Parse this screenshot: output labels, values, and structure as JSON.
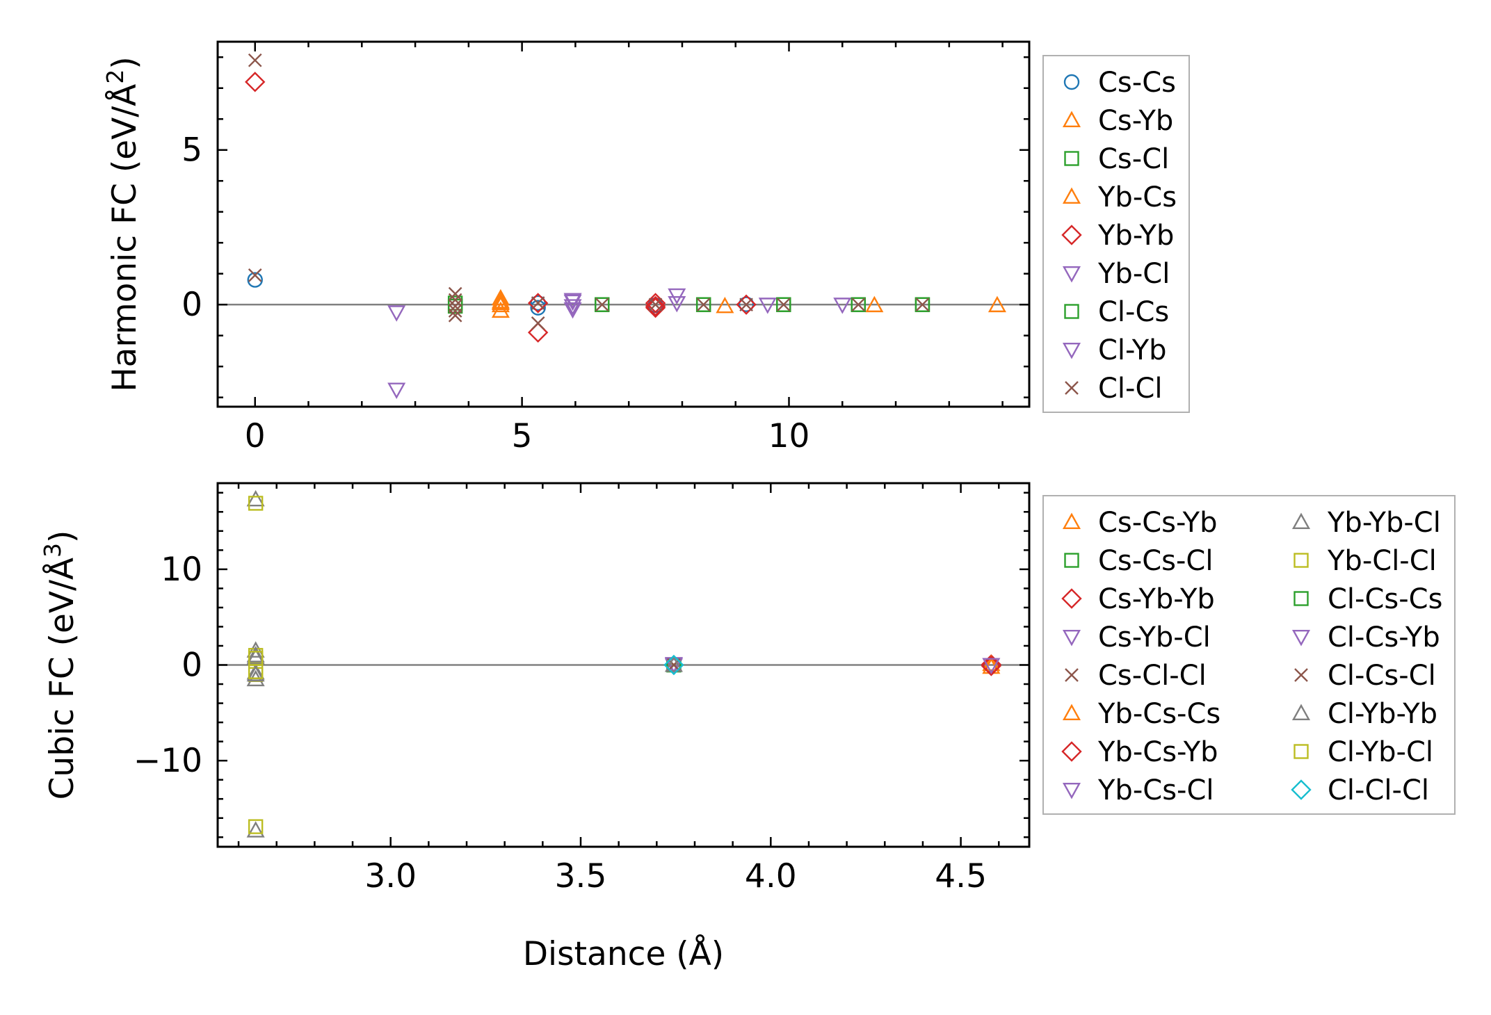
{
  "colors": {
    "C0": "#1f77b4",
    "C1": "#ff7f0e",
    "C2": "#2ca02c",
    "C3": "#d62728",
    "C4": "#9467bd",
    "C5": "#8c564b",
    "C7": "#7f7f7f",
    "C8": "#bcbd22",
    "C9": "#17becf"
  },
  "chart_data": [
    {
      "type": "scatter",
      "ylabel_prefix": "Harmonic FC (eV/Å",
      "ylabel_sup": "2",
      "ylabel_suffix": ")",
      "xlabel": "",
      "xlim": [
        -0.7,
        14.5
      ],
      "ylim": [
        -3.3,
        8.5
      ],
      "xticks": [
        0,
        5,
        10
      ],
      "yticks": [
        0,
        5
      ],
      "xminor_step": 1,
      "yminor_step": 1,
      "hline": 0,
      "legend_position": "outside-right-top",
      "legend_ncol": 1,
      "series": [
        {
          "name": "Cs-Cs",
          "marker": "circle",
          "color": "C0",
          "x": [
            0,
            5.3,
            5.3,
            7.5,
            9.2
          ],
          "y": [
            0.8,
            -0.1,
            0.05,
            -0.02,
            0.01
          ]
        },
        {
          "name": "Cs-Yb",
          "marker": "triangle-up",
          "color": "C1",
          "x": [
            4.6,
            4.6,
            4.6,
            8.8,
            11.6,
            13.9
          ],
          "y": [
            0.1,
            -0.02,
            -0.2,
            -0.05,
            -0.02,
            -0.02
          ]
        },
        {
          "name": "Cs-Cl",
          "marker": "square",
          "color": "C2",
          "x": [
            3.75,
            3.75,
            6.5,
            8.4,
            9.9,
            11.3,
            12.5
          ],
          "y": [
            0.05,
            -0.05,
            0.0,
            0.0,
            0.0,
            0.0,
            0.0
          ]
        },
        {
          "name": "Yb-Cs",
          "marker": "triangle-up",
          "color": "C1",
          "x": [
            4.6,
            4.6
          ],
          "y": [
            0.2,
            0.05
          ]
        },
        {
          "name": "Yb-Yb",
          "marker": "diamond",
          "color": "C3",
          "x": [
            0,
            5.3,
            5.3,
            7.5,
            7.5,
            7.5,
            9.2
          ],
          "y": [
            7.2,
            0.05,
            -0.9,
            0.05,
            -0.05,
            -0.1,
            0.0
          ]
        },
        {
          "name": "Yb-Cl",
          "marker": "triangle-down",
          "color": "C4",
          "x": [
            2.65,
            2.65,
            5.95,
            5.95,
            7.9,
            9.6,
            11.0
          ],
          "y": [
            -0.25,
            -2.75,
            0.1,
            -0.05,
            0.3,
            0.0,
            0.0
          ]
        },
        {
          "name": "Cl-Cs",
          "marker": "square",
          "color": "C2",
          "x": [
            6.5,
            8.4,
            9.9,
            11.3,
            12.5
          ],
          "y": [
            0.0,
            0.0,
            0.0,
            0.0,
            0.0
          ]
        },
        {
          "name": "Cl-Yb",
          "marker": "triangle-down",
          "color": "C4",
          "x": [
            5.95,
            5.95,
            7.9
          ],
          "y": [
            0.15,
            -0.15,
            0.05
          ]
        },
        {
          "name": "Cl-Cl",
          "marker": "x",
          "color": "C5",
          "x": [
            0,
            0,
            3.75,
            3.75,
            3.75,
            3.75,
            3.75,
            5.3,
            5.3,
            6.5,
            7.5,
            8.4,
            9.2,
            9.9,
            11.3,
            12.5
          ],
          "y": [
            7.9,
            0.95,
            0.35,
            0.15,
            -0.05,
            -0.2,
            -0.35,
            -0.6,
            0.05,
            0.0,
            0.0,
            0.0,
            0.0,
            0.0,
            0.0,
            0.0
          ]
        }
      ]
    },
    {
      "type": "scatter",
      "ylabel_prefix": "Cubic FC (eV/Å",
      "ylabel_sup": "3",
      "ylabel_suffix": ")",
      "xlabel": "Distance (Å)",
      "xlim": [
        2.545,
        4.68
      ],
      "ylim": [
        -19,
        19
      ],
      "xticks": [
        3.0,
        3.5,
        4.0,
        4.5
      ],
      "xticklabels": [
        "3.0",
        "3.5",
        "4.0",
        "4.5"
      ],
      "yticks": [
        -10,
        0,
        10
      ],
      "yticklabels": [
        "−10",
        "0",
        "10"
      ],
      "xminor_step": 0.1,
      "yminor_step": 2,
      "hline": 0,
      "legend_position": "outside-right-top",
      "legend_ncol": 2,
      "series": [
        {
          "name": "Cs-Cs-Yb",
          "marker": "triangle-up",
          "color": "C1",
          "x": [
            4.58
          ],
          "y": [
            -0.2
          ]
        },
        {
          "name": "Cs-Cs-Cl",
          "marker": "square",
          "color": "C2",
          "x": [
            3.745
          ],
          "y": [
            0.0
          ]
        },
        {
          "name": "Cs-Yb-Yb",
          "marker": "diamond",
          "color": "C3",
          "x": [
            4.58
          ],
          "y": [
            0.05
          ]
        },
        {
          "name": "Cs-Yb-Cl",
          "marker": "triangle-down",
          "color": "C4",
          "x": [
            3.745
          ],
          "y": [
            0.05
          ]
        },
        {
          "name": "Cs-Cl-Cl",
          "marker": "x",
          "color": "C5",
          "x": [
            3.745
          ],
          "y": [
            0.0
          ]
        },
        {
          "name": "Yb-Cs-Cs",
          "marker": "triangle-up",
          "color": "C1",
          "x": [
            4.58
          ],
          "y": [
            0.1
          ]
        },
        {
          "name": "Yb-Cs-Yb",
          "marker": "diamond",
          "color": "C3",
          "x": [
            4.58
          ],
          "y": [
            -0.1
          ]
        },
        {
          "name": "Yb-Cs-Cl",
          "marker": "triangle-down",
          "color": "C4",
          "x": [
            3.745
          ],
          "y": [
            -0.05
          ]
        },
        {
          "name": "Yb-Yb-Cl",
          "marker": "triangle-up",
          "color": "C7",
          "x": [
            2.645,
            2.645,
            2.645,
            2.645,
            2.645,
            2.645
          ],
          "y": [
            17.3,
            -17.3,
            1.5,
            -1.5,
            0.8,
            -0.8
          ]
        },
        {
          "name": "Yb-Cl-Cl",
          "marker": "square",
          "color": "C8",
          "x": [
            2.645,
            2.645,
            2.645,
            2.645
          ],
          "y": [
            16.9,
            -16.9,
            1.0,
            -1.0
          ]
        },
        {
          "name": "Cl-Cs-Cs",
          "marker": "square",
          "color": "C2",
          "x": [
            3.745
          ],
          "y": [
            0.0
          ]
        },
        {
          "name": "Cl-Cs-Yb",
          "marker": "triangle-down",
          "color": "C4",
          "x": [
            3.745,
            4.58
          ],
          "y": [
            0.1,
            0.0
          ]
        },
        {
          "name": "Cl-Cs-Cl",
          "marker": "x",
          "color": "C5",
          "x": [
            3.745
          ],
          "y": [
            0.0
          ]
        },
        {
          "name": "Cl-Yb-Yb",
          "marker": "triangle-up",
          "color": "C7",
          "x": [
            2.645,
            2.645,
            3.745
          ],
          "y": [
            1.0,
            -1.0,
            0.0
          ]
        },
        {
          "name": "Cl-Yb-Cl",
          "marker": "square",
          "color": "C8",
          "x": [
            2.645,
            2.645
          ],
          "y": [
            0.7,
            -0.7
          ]
        },
        {
          "name": "Cl-Cl-Cl",
          "marker": "diamond",
          "color": "C9",
          "x": [
            3.745
          ],
          "y": [
            0.0
          ]
        }
      ]
    }
  ]
}
